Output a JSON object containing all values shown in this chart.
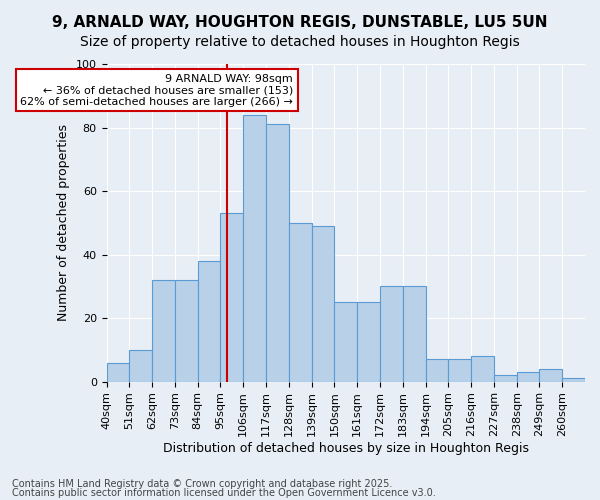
{
  "title1": "9, ARNALD WAY, HOUGHTON REGIS, DUNSTABLE, LU5 5UN",
  "title2": "Size of property relative to detached houses in Houghton Regis",
  "xlabel": "Distribution of detached houses by size in Houghton Regis",
  "ylabel": "Number of detached properties",
  "bin_edges": [
    40,
    51,
    62,
    73,
    84,
    95,
    106,
    117,
    128,
    139,
    150,
    161,
    172,
    183,
    194,
    205,
    216,
    227,
    238,
    249,
    260,
    271
  ],
  "bar_heights": [
    6,
    10,
    32,
    32,
    38,
    53,
    84,
    81,
    50,
    49,
    25,
    25,
    30,
    30,
    7,
    7,
    8,
    2,
    3,
    4,
    1
  ],
  "tick_positions": [
    40,
    51,
    62,
    73,
    84,
    95,
    106,
    117,
    128,
    139,
    150,
    161,
    172,
    183,
    194,
    205,
    216,
    227,
    238,
    249,
    260
  ],
  "bar_color": "#b8d0e8",
  "bar_edgecolor": "#5b9bd5",
  "property_sqm": 98,
  "red_line_color": "#cc0000",
  "annotation_text": "9 ARNALD WAY: 98sqm\n← 36% of detached houses are smaller (153)\n62% of semi-detached houses are larger (266) →",
  "annotation_box_edgecolor": "#cc0000",
  "annotation_box_facecolor": "#ffffff",
  "ylim": [
    0,
    100
  ],
  "yticks": [
    0,
    20,
    40,
    60,
    80,
    100
  ],
  "background_color": "#e8eef5",
  "footnote1": "Contains HM Land Registry data © Crown copyright and database right 2025.",
  "footnote2": "Contains public sector information licensed under the Open Government Licence v3.0.",
  "title_fontsize": 11,
  "subtitle_fontsize": 10,
  "axis_label_fontsize": 9,
  "tick_fontsize": 8,
  "annotation_fontsize": 8,
  "footnote_fontsize": 7
}
